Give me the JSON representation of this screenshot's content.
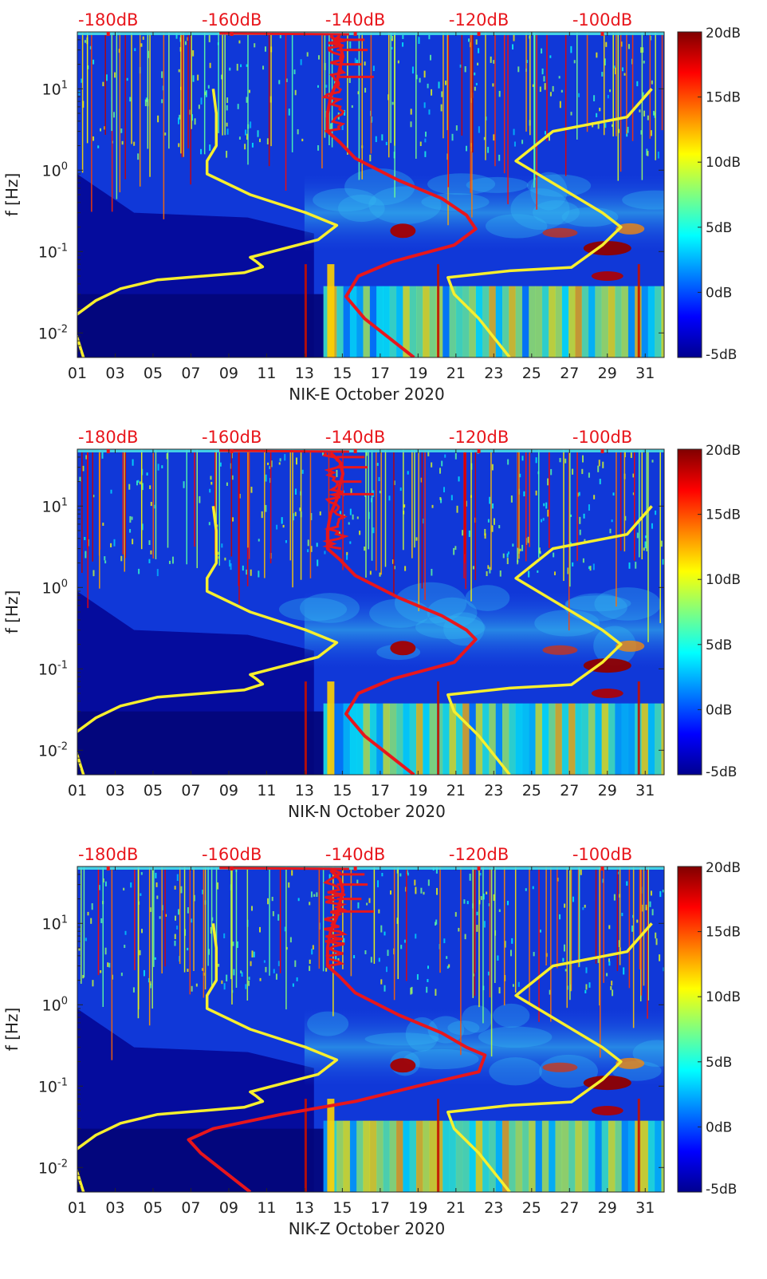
{
  "colors": {
    "psd_curve": "#e8161c",
    "model_curve": "#f7ef2e",
    "top_scale_text": "#e8161c",
    "background_field": "#1038d8",
    "quiet_field": "#050a9a",
    "tick_text": "#222222"
  },
  "chart_data": [
    {
      "type": "heatmap",
      "component": "NIK-E",
      "xlabel": "NIK-E October 2020",
      "ylabel": "f [Hz]",
      "x_ticks": [
        "01",
        "03",
        "05",
        "07",
        "09",
        "11",
        "13",
        "15",
        "17",
        "19",
        "21",
        "23",
        "25",
        "27",
        "29",
        "31"
      ],
      "xlim": [
        1,
        32
      ],
      "y_scale": "log",
      "ylim": [
        0.005,
        50
      ],
      "y_ticks": [
        {
          "value": 0.01,
          "label": "10^-2"
        },
        {
          "value": 0.1,
          "label": "10^-1"
        },
        {
          "value": 1,
          "label": "10^0"
        },
        {
          "value": 10,
          "label": "10^1"
        }
      ],
      "colorbar": {
        "min": -5,
        "max": 20,
        "ticks": [
          "20dB",
          "15dB",
          "10dB",
          "5dB",
          "0dB",
          "-5dB"
        ]
      },
      "top_scale": {
        "labels": [
          "-180dB",
          "-160dB",
          "-140dB",
          "-120dB",
          "-100dB"
        ],
        "values": [
          -180,
          -160,
          -140,
          -120,
          -100
        ],
        "xlim": [
          -185,
          -90
        ]
      },
      "series": [
        {
          "color": "red",
          "points": [
            [
              -130.5,
              0.005
            ],
            [
              -138.5,
              0.015
            ],
            [
              -141.5,
              0.028
            ],
            [
              -139.5,
              0.05
            ],
            [
              -134,
              0.075
            ],
            [
              -124,
              0.12
            ],
            [
              -120.5,
              0.19
            ],
            [
              -122,
              0.28
            ],
            [
              -126,
              0.45
            ],
            [
              -133,
              0.75
            ],
            [
              -140,
              1.4
            ],
            [
              -142.5,
              2.2
            ],
            [
              -144.5,
              3
            ],
            [
              -144.5,
              5
            ],
            [
              -144,
              8
            ],
            [
              -143,
              12
            ],
            [
              -142.5,
              18
            ],
            [
              -142,
              25
            ],
            [
              -142.5,
              35
            ],
            [
              -144,
              45
            ]
          ]
        },
        {
          "color": "yellow",
          "points": [
            [
              -184,
              0.005
            ],
            [
              -186,
              0.015
            ],
            [
              -182,
              0.025
            ],
            [
              -178,
              0.035
            ],
            [
              -172,
              0.045
            ],
            [
              -158,
              0.055
            ],
            [
              -155,
              0.065
            ],
            [
              -156,
              0.075
            ],
            [
              -157,
              0.085
            ],
            [
              -146,
              0.14
            ],
            [
              -143,
              0.21
            ],
            [
              -148,
              0.3
            ],
            [
              -157,
              0.5
            ],
            [
              -164,
              0.9
            ],
            [
              -164,
              1.3
            ],
            [
              -162.5,
              2
            ],
            [
              -162.5,
              5
            ],
            [
              -163,
              10
            ]
          ]
        },
        {
          "color": "yellow",
          "points": [
            [
              -115,
              0.005
            ],
            [
              -120,
              0.015
            ],
            [
              -124,
              0.03
            ],
            [
              -125,
              0.048
            ],
            [
              -115,
              0.058
            ],
            [
              -105,
              0.064
            ],
            [
              -100,
              0.12
            ],
            [
              -97,
              0.2
            ],
            [
              -100,
              0.3
            ],
            [
              -114,
              1.3
            ],
            [
              -108,
              3
            ],
            [
              -96,
              4.5
            ],
            [
              -92,
              10
            ]
          ]
        }
      ]
    },
    {
      "type": "heatmap",
      "component": "NIK-N",
      "xlabel": "NIK-N October 2020",
      "ylabel": "f [Hz]",
      "x_ticks": [
        "01",
        "03",
        "05",
        "07",
        "09",
        "11",
        "13",
        "15",
        "17",
        "19",
        "21",
        "23",
        "25",
        "27",
        "29",
        "31"
      ],
      "xlim": [
        1,
        32
      ],
      "y_scale": "log",
      "ylim": [
        0.005,
        50
      ],
      "y_ticks": [
        {
          "value": 0.01,
          "label": "10^-2"
        },
        {
          "value": 0.1,
          "label": "10^-1"
        },
        {
          "value": 1,
          "label": "10^0"
        },
        {
          "value": 10,
          "label": "10^1"
        }
      ],
      "colorbar": {
        "min": -5,
        "max": 20,
        "ticks": [
          "20dB",
          "15dB",
          "10dB",
          "5dB",
          "0dB",
          "-5dB"
        ]
      },
      "top_scale": {
        "labels": [
          "-180dB",
          "-160dB",
          "-140dB",
          "-120dB",
          "-100dB"
        ],
        "values": [
          -180,
          -160,
          -140,
          -120,
          -100
        ],
        "xlim": [
          -185,
          -90
        ]
      },
      "series": [
        {
          "color": "red",
          "points": [
            [
              -130.5,
              0.005
            ],
            [
              -138.5,
              0.015
            ],
            [
              -141.5,
              0.028
            ],
            [
              -139.5,
              0.05
            ],
            [
              -134,
              0.075
            ],
            [
              -124,
              0.12
            ],
            [
              -120.5,
              0.23
            ],
            [
              -122,
              0.3
            ],
            [
              -126,
              0.45
            ],
            [
              -133,
              0.75
            ],
            [
              -140,
              1.4
            ],
            [
              -142.5,
              2.2
            ],
            [
              -144.5,
              3
            ],
            [
              -144.5,
              5
            ],
            [
              -144,
              8
            ],
            [
              -143,
              12
            ],
            [
              -142.5,
              18
            ],
            [
              -142,
              25
            ],
            [
              -142.5,
              35
            ],
            [
              -144,
              45
            ]
          ]
        },
        {
          "color": "yellow",
          "points": [
            [
              -184,
              0.005
            ],
            [
              -186,
              0.015
            ],
            [
              -182,
              0.025
            ],
            [
              -178,
              0.035
            ],
            [
              -172,
              0.045
            ],
            [
              -158,
              0.055
            ],
            [
              -155,
              0.065
            ],
            [
              -156,
              0.075
            ],
            [
              -157,
              0.085
            ],
            [
              -146,
              0.14
            ],
            [
              -143,
              0.21
            ],
            [
              -148,
              0.3
            ],
            [
              -157,
              0.5
            ],
            [
              -164,
              0.9
            ],
            [
              -164,
              1.3
            ],
            [
              -162.5,
              2
            ],
            [
              -162.5,
              5
            ],
            [
              -163,
              10
            ]
          ]
        },
        {
          "color": "yellow",
          "points": [
            [
              -115,
              0.005
            ],
            [
              -120,
              0.015
            ],
            [
              -124,
              0.03
            ],
            [
              -125,
              0.048
            ],
            [
              -115,
              0.058
            ],
            [
              -105,
              0.064
            ],
            [
              -100,
              0.12
            ],
            [
              -97,
              0.2
            ],
            [
              -100,
              0.3
            ],
            [
              -114,
              1.3
            ],
            [
              -108,
              3
            ],
            [
              -96,
              4.5
            ],
            [
              -92,
              10
            ]
          ]
        }
      ]
    },
    {
      "type": "heatmap",
      "component": "NIK-Z",
      "xlabel": "NIK-Z October 2020",
      "ylabel": "f [Hz]",
      "x_ticks": [
        "01",
        "03",
        "05",
        "07",
        "09",
        "11",
        "13",
        "15",
        "17",
        "19",
        "21",
        "23",
        "25",
        "27",
        "29",
        "31"
      ],
      "xlim": [
        1,
        32
      ],
      "y_scale": "log",
      "ylim": [
        0.005,
        50
      ],
      "y_ticks": [
        {
          "value": 0.01,
          "label": "10^-2"
        },
        {
          "value": 0.1,
          "label": "10^-1"
        },
        {
          "value": 1,
          "label": "10^0"
        },
        {
          "value": 10,
          "label": "10^1"
        }
      ],
      "colorbar": {
        "min": -5,
        "max": 20,
        "ticks": [
          "20dB",
          "15dB",
          "10dB",
          "5dB",
          "0dB",
          "-5dB"
        ]
      },
      "top_scale": {
        "labels": [
          "-180dB",
          "-160dB",
          "-140dB",
          "-120dB",
          "-100dB"
        ],
        "values": [
          -180,
          -160,
          -140,
          -120,
          -100
        ],
        "xlim": [
          -185,
          -90
        ]
      },
      "series": [
        {
          "color": "red",
          "points": [
            [
              -157,
              0.005
            ],
            [
              -165,
              0.015
            ],
            [
              -167,
              0.022
            ],
            [
              -163,
              0.03
            ],
            [
              -152,
              0.045
            ],
            [
              -140,
              0.065
            ],
            [
              -130,
              0.1
            ],
            [
              -120,
              0.15
            ],
            [
              -119,
              0.24
            ],
            [
              -122,
              0.3
            ],
            [
              -126,
              0.45
            ],
            [
              -133,
              0.75
            ],
            [
              -140,
              1.4
            ],
            [
              -142.5,
              2.2
            ],
            [
              -144.5,
              3
            ],
            [
              -144.5,
              5
            ],
            [
              -144,
              8
            ],
            [
              -143,
              12
            ],
            [
              -142.5,
              18
            ],
            [
              -142,
              25
            ],
            [
              -142.5,
              35
            ],
            [
              -144,
              45
            ]
          ]
        },
        {
          "color": "yellow",
          "points": [
            [
              -184,
              0.005
            ],
            [
              -186,
              0.015
            ],
            [
              -182,
              0.025
            ],
            [
              -178,
              0.035
            ],
            [
              -172,
              0.045
            ],
            [
              -158,
              0.055
            ],
            [
              -155,
              0.065
            ],
            [
              -156,
              0.075
            ],
            [
              -157,
              0.085
            ],
            [
              -146,
              0.14
            ],
            [
              -143,
              0.21
            ],
            [
              -148,
              0.3
            ],
            [
              -157,
              0.5
            ],
            [
              -164,
              0.9
            ],
            [
              -164,
              1.3
            ],
            [
              -162.5,
              2
            ],
            [
              -162.5,
              5
            ],
            [
              -163,
              10
            ]
          ]
        },
        {
          "color": "yellow",
          "points": [
            [
              -115,
              0.005
            ],
            [
              -120,
              0.015
            ],
            [
              -124,
              0.03
            ],
            [
              -125,
              0.048
            ],
            [
              -115,
              0.058
            ],
            [
              -105,
              0.064
            ],
            [
              -100,
              0.12
            ],
            [
              -97,
              0.2
            ],
            [
              -100,
              0.3
            ],
            [
              -114,
              1.3
            ],
            [
              -108,
              3
            ],
            [
              -96,
              4.5
            ],
            [
              -92,
              10
            ]
          ]
        }
      ]
    }
  ]
}
